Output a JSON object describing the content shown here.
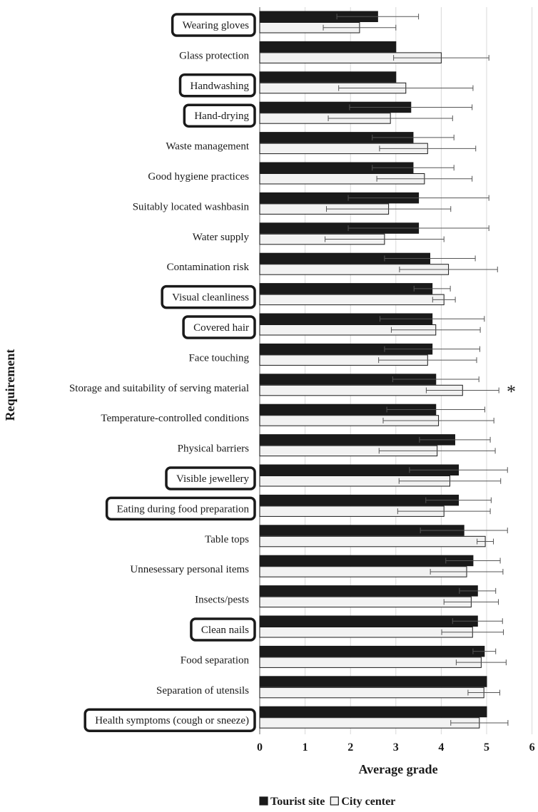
{
  "chart_data": {
    "type": "bar",
    "orientation": "horizontal",
    "xlabel": "Average grade",
    "ylabel": "Requirement",
    "xlim": [
      0,
      6
    ],
    "xticks": [
      0,
      1,
      2,
      3,
      4,
      5,
      6
    ],
    "grid": "vertical gridlines",
    "legend_position": "bottom-center",
    "categories": [
      "Wearing gloves",
      "Glass protection",
      "Handwashing",
      "Hand-drying",
      "Waste management",
      "Good hygiene practices",
      "Suitably located washbasin",
      "Water supply",
      "Contamination risk",
      "Visual cleanliness",
      "Covered hair",
      "Face touching",
      "Storage and suitability of serving material",
      "Temperature-controlled conditions",
      "Physical barriers",
      "Visible jewellery",
      "Eating during food preparation",
      "Table tops",
      "Unnesessary personal items",
      "Insects/pests",
      "Clean nails",
      "Food separation",
      "Separation of utensils",
      "Health symptoms (cough or sneeze)"
    ],
    "highlighted": [
      "Wearing gloves",
      "Handwashing",
      "Hand-drying",
      "Visual cleanliness",
      "Covered hair",
      "Visible jewellery",
      "Eating during food preparation",
      "Clean nails",
      "Health symptoms (cough or sneeze)"
    ],
    "series": [
      {
        "name": "Tourist site",
        "color": "#1a1a1a",
        "values": [
          2.6,
          3.0,
          3.0,
          3.33,
          3.38,
          3.38,
          3.5,
          3.5,
          3.75,
          3.8,
          3.8,
          3.8,
          3.88,
          3.88,
          4.3,
          4.38,
          4.38,
          4.5,
          4.7,
          4.8,
          4.8,
          4.95,
          5.0,
          5.0
        ],
        "errors": [
          0.9,
          0.0,
          0.0,
          1.35,
          0.9,
          0.9,
          1.55,
          1.55,
          1.0,
          0.4,
          1.15,
          1.05,
          0.95,
          1.08,
          0.78,
          1.08,
          0.72,
          0.96,
          0.6,
          0.4,
          0.55,
          0.25,
          0.0,
          0.0
        ]
      },
      {
        "name": "City center",
        "color": "#f2f2f2",
        "values": [
          2.2,
          4.0,
          3.22,
          2.88,
          3.7,
          3.63,
          2.84,
          2.75,
          4.16,
          4.06,
          3.88,
          3.7,
          4.47,
          3.94,
          3.91,
          4.19,
          4.06,
          4.97,
          4.56,
          4.66,
          4.69,
          4.88,
          4.94,
          4.84
        ],
        "errors": [
          0.8,
          1.05,
          1.48,
          1.37,
          1.06,
          1.05,
          1.37,
          1.31,
          1.08,
          0.25,
          0.98,
          1.08,
          0.8,
          1.22,
          1.28,
          1.12,
          1.02,
          0.18,
          0.8,
          0.6,
          0.68,
          0.55,
          0.35,
          0.63
        ]
      }
    ],
    "annotations": [
      {
        "category": "Storage and suitability of serving material",
        "text": "*"
      }
    ]
  }
}
